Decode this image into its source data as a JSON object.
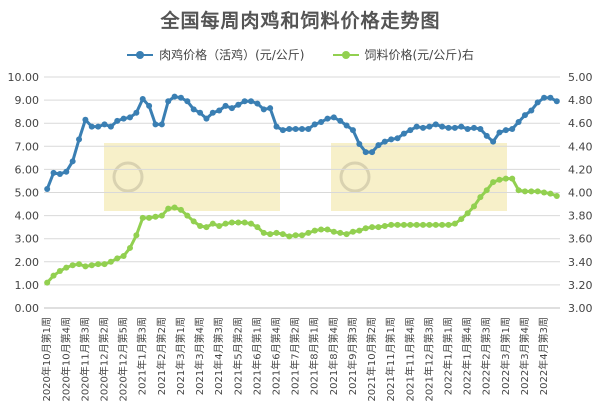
{
  "chart_data": {
    "type": "line",
    "title": "全国每周肉鸡和饲料价格走势图",
    "y_left": {
      "min": 0,
      "max": 10,
      "ticks": [
        "0.00",
        "1.00",
        "2.00",
        "3.00",
        "4.00",
        "5.00",
        "6.00",
        "7.00",
        "8.00",
        "9.00",
        "10.00"
      ]
    },
    "y_right": {
      "min": 3.0,
      "max": 5.0,
      "ticks": [
        "3.00",
        "3.20",
        "3.40",
        "3.60",
        "3.80",
        "4.00",
        "4.20",
        "4.40",
        "4.60",
        "4.80",
        "5.00"
      ]
    },
    "x_labels": [
      "2020年10月第1周",
      "2020年10月第4周",
      "2020年11月第3周",
      "2020年12月第2周",
      "2020年12月第5周",
      "2021年1月第3周",
      "2021年2月第2周",
      "2021年3月第1周",
      "2021年3月第4周",
      "2021年4月第3周",
      "2021年5月第2周",
      "2021年6月第1周",
      "2021年6月第4周",
      "2021年7月第2周",
      "2021年8月第1周",
      "2021年8月第4周",
      "2021年9月第3周",
      "2021年10月第2周",
      "2021年11月第1周",
      "2021年11月第4周",
      "2021年12月第3周",
      "2022年1月第1周",
      "2022年1月第4周",
      "2022年2月第3周",
      "2022年3月第1周",
      "2022年3月第4周",
      "2022年4月第3周"
    ],
    "grid": true,
    "legend_position": "top",
    "series": [
      {
        "name": "肉鸡价格（活鸡）(元/公斤)",
        "axis": "left",
        "color": "#3a7fb3",
        "values": [
          5.15,
          5.85,
          5.8,
          5.9,
          6.35,
          7.3,
          8.15,
          7.85,
          7.85,
          7.95,
          7.85,
          8.1,
          8.2,
          8.25,
          8.45,
          9.05,
          8.75,
          7.95,
          7.95,
          8.95,
          9.15,
          9.1,
          8.95,
          8.6,
          8.45,
          8.2,
          8.45,
          8.55,
          8.75,
          8.65,
          8.8,
          8.95,
          8.95,
          8.85,
          8.6,
          8.65,
          7.85,
          7.7,
          7.75,
          7.75,
          7.75,
          7.75,
          7.95,
          8.05,
          8.2,
          8.25,
          8.1,
          7.9,
          7.7,
          7.1,
          6.75,
          6.75,
          7.05,
          7.2,
          7.3,
          7.35,
          7.55,
          7.7,
          7.85,
          7.8,
          7.85,
          7.95,
          7.85,
          7.8,
          7.8,
          7.85,
          7.75,
          7.8,
          7.75,
          7.45,
          7.2,
          7.6,
          7.7,
          7.75,
          8.05,
          8.35,
          8.55,
          8.9,
          9.1,
          9.1,
          8.95
        ]
      },
      {
        "name": "饲料价格(元/公斤)右",
        "axis": "right",
        "color": "#92d050",
        "values": [
          3.22,
          3.28,
          3.32,
          3.35,
          3.37,
          3.38,
          3.36,
          3.37,
          3.38,
          3.38,
          3.4,
          3.43,
          3.45,
          3.52,
          3.63,
          3.78,
          3.78,
          3.79,
          3.8,
          3.86,
          3.87,
          3.85,
          3.8,
          3.75,
          3.71,
          3.7,
          3.73,
          3.71,
          3.73,
          3.74,
          3.74,
          3.74,
          3.73,
          3.7,
          3.65,
          3.64,
          3.65,
          3.64,
          3.62,
          3.63,
          3.63,
          3.65,
          3.67,
          3.68,
          3.68,
          3.66,
          3.65,
          3.64,
          3.66,
          3.67,
          3.69,
          3.7,
          3.7,
          3.71,
          3.72,
          3.72,
          3.72,
          3.72,
          3.72,
          3.72,
          3.72,
          3.72,
          3.72,
          3.72,
          3.73,
          3.77,
          3.82,
          3.88,
          3.96,
          4.02,
          4.09,
          4.11,
          4.12,
          4.12,
          4.02,
          4.01,
          4.01,
          4.01,
          4.0,
          3.99,
          3.97
        ]
      }
    ]
  }
}
